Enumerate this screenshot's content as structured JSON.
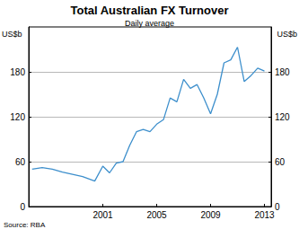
{
  "chart_data": {
    "type": "line",
    "title": "Total Australian FX Turnover",
    "subtitle": "Daily average",
    "y_label": "US$b",
    "y2_label": "US$b",
    "source": "Source: RBA",
    "color": "#3d8fcc",
    "x": [
      1995.75,
      1996.5,
      1997.25,
      1998,
      1998.75,
      1999.5,
      2000.4,
      2001,
      2001.5,
      2002,
      2002.5,
      2003,
      2003.5,
      2004,
      2004.5,
      2005,
      2005.5,
      2006,
      2006.5,
      2007,
      2007.5,
      2008,
      2008.5,
      2009,
      2009.5,
      2010,
      2010.5,
      2011,
      2011.5,
      2012,
      2012.5,
      2013
    ],
    "values": [
      50,
      52,
      50,
      46,
      43,
      40,
      34,
      54,
      45,
      58,
      60,
      82,
      100,
      103,
      100,
      110,
      116,
      145,
      140,
      170,
      158,
      163,
      145,
      124,
      150,
      192,
      196,
      213,
      167,
      175,
      185,
      181
    ],
    "xlim": [
      1995.5,
      2013.5
    ],
    "xticks": [
      2001,
      2005,
      2009,
      2013
    ],
    "ylim": [
      0,
      240
    ],
    "yticks": [
      0,
      60,
      120,
      180
    ],
    "y2lim": [
      0,
      240
    ],
    "y2ticks": [
      0,
      60,
      120,
      180
    ],
    "grid": true
  }
}
